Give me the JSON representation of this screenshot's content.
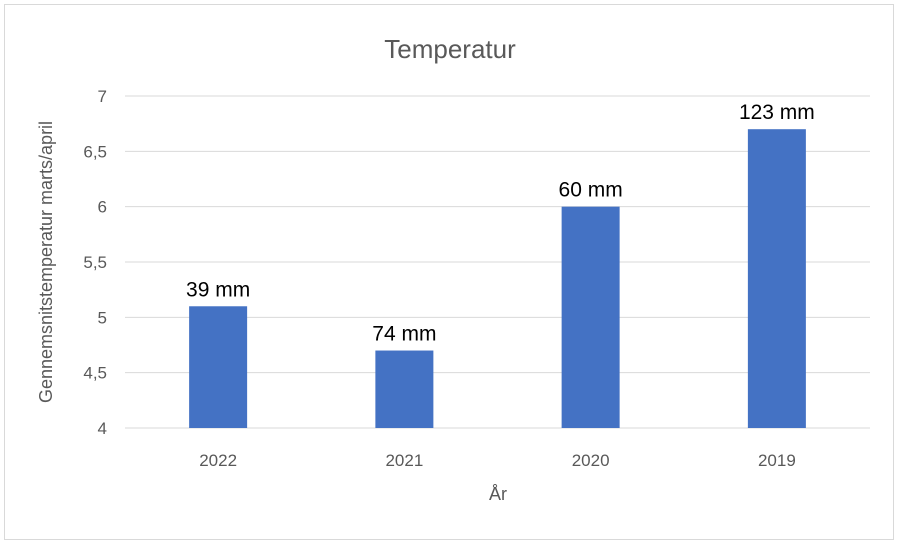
{
  "chart_data": {
    "type": "bar",
    "title": "Temperatur",
    "xlabel": "År",
    "ylabel": "Gennemsnitstemperatur marts/april",
    "categories": [
      "2022",
      "2021",
      "2020",
      "2019"
    ],
    "values": [
      5.1,
      4.7,
      6.0,
      6.7
    ],
    "data_labels": [
      "39 mm",
      "74 mm",
      "60 mm",
      "123 mm"
    ],
    "ylim": [
      4,
      7
    ],
    "yticks": [
      4,
      4.5,
      5,
      5.5,
      6,
      6.5,
      7
    ],
    "ytick_labels": [
      "4",
      "4,5",
      "5",
      "5,5",
      "6",
      "6,5",
      "7"
    ],
    "grid": true,
    "legend": "none",
    "bar_color": "#4472C4"
  }
}
